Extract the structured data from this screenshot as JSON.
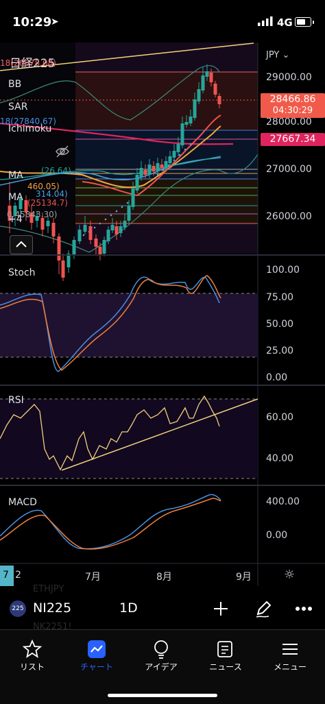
{
  "status_bar": {
    "time": "10:29",
    "network": "4G"
  },
  "chart": {
    "currency": "JPY",
    "symbol_title": "日経225",
    "indicators": [
      "BB",
      "SAR",
      "Ichimoku",
      "MA",
      "MA"
    ],
    "indicator_overlay_values": [
      "18(26678.08)",
      "18(27840.67)",
      "(26.64)",
      "460.05)",
      "314.04)",
      "(25134.7)",
      "0.45843.30)"
    ],
    "more_indicators": "+4",
    "price_axis": [
      "29000.00",
      "28000.00",
      "27000.00",
      "26000.00"
    ],
    "last_price": "28466.86",
    "countdown": "04:30:29",
    "marker_price": "27667.34",
    "stoch": {
      "label": "Stoch",
      "axis": [
        "100.00",
        "75.00",
        "50.00",
        "25.00",
        "0.00"
      ]
    },
    "rsi": {
      "label": "RSI",
      "axis": [
        "60.00",
        "40.00"
      ]
    },
    "macd": {
      "label": "MACD",
      "axis": [
        "400.00",
        "0.00"
      ]
    },
    "time_axis": [
      "7",
      "2",
      "7月",
      "8月",
      "9月"
    ],
    "colors": {
      "bg": "#000000",
      "up": "#26a69a",
      "down": "#ef5350",
      "last_price_tag": "#f15a4a",
      "marker_tag": "#e0245e"
    }
  },
  "symbol_bar": {
    "badge": "225",
    "symbol": "NI225",
    "interval": "1D",
    "faded_above": "ETHJPY",
    "faded_below": "NK2251!"
  },
  "nav": [
    {
      "label": "リスト",
      "icon": "star-icon"
    },
    {
      "label": "チャート",
      "icon": "chart-icon",
      "active": true
    },
    {
      "label": "アイデア",
      "icon": "lightbulb-icon"
    },
    {
      "label": "ニュース",
      "icon": "news-icon"
    },
    {
      "label": "メニュー",
      "icon": "menu-icon"
    }
  ]
}
